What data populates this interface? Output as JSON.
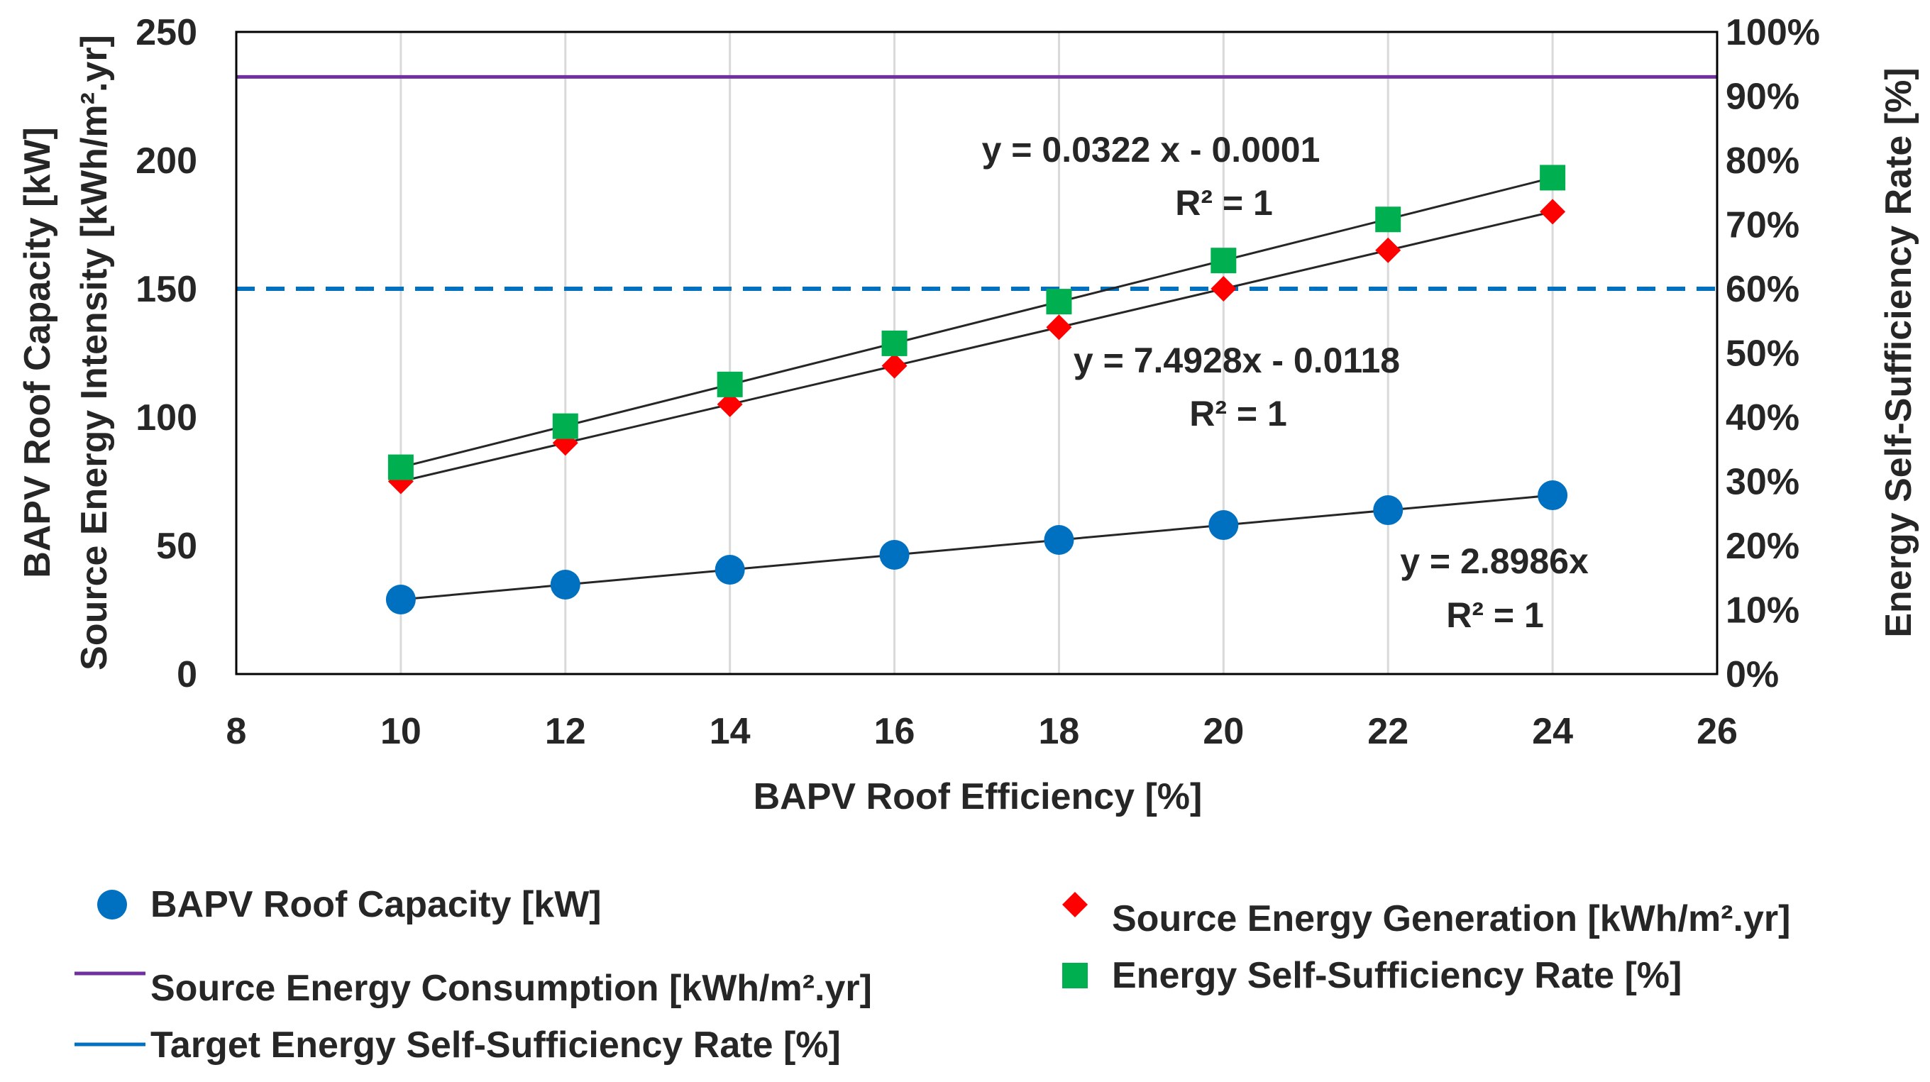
{
  "chart_data": {
    "type": "scatter",
    "xlabel": "BAPV Roof Efficiency [%]",
    "ylabel_left_line1": "BAPV Roof Capacity [kW]",
    "ylabel_left_line2": "Source Energy Intensity [kWh/m².yr]",
    "ylabel_right": "Energy Self-Sufficiency Rate [%]",
    "xlim": [
      8,
      26
    ],
    "xticks": [
      "8",
      "10",
      "12",
      "14",
      "16",
      "18",
      "20",
      "22",
      "24",
      "26"
    ],
    "ylim_left": [
      0,
      250
    ],
    "yticks_left": [
      "0",
      "50",
      "100",
      "150",
      "200",
      "250"
    ],
    "ylim_right": [
      0,
      100
    ],
    "yticks_right": [
      "0%",
      "10%",
      "20%",
      "30%",
      "40%",
      "50%",
      "60%",
      "70%",
      "80%",
      "90%",
      "100%"
    ],
    "x": [
      10,
      12,
      14,
      16,
      18,
      20,
      22,
      24
    ],
    "series": [
      {
        "name": "BAPV Roof Capacity [kW]",
        "axis": "left",
        "marker": "circle",
        "color": "#0070C0",
        "values": [
          29,
          34.8,
          40.6,
          46.4,
          52.2,
          58,
          63.8,
          69.6
        ]
      },
      {
        "name": "Source Energy Generation [kWh/m².yr]",
        "axis": "left",
        "marker": "diamond",
        "color": "#FF0000",
        "values": [
          75,
          90,
          105,
          120,
          135,
          150,
          165,
          180
        ]
      },
      {
        "name": "Energy Self-Sufficiency Rate [%]",
        "axis": "right",
        "marker": "square",
        "color": "#00B050",
        "values": [
          32.2,
          38.6,
          45.1,
          51.5,
          58,
          64.4,
          70.8,
          77.3
        ]
      }
    ],
    "reference_lines": [
      {
        "name": "Source Energy Consumption [kWh/m².yr]",
        "axis": "left",
        "value": 232.5,
        "color": "#7030A0",
        "style": "solid"
      },
      {
        "name": "Target Energy Self-Sufficiency Rate [%]",
        "axis": "right",
        "value": 60,
        "color": "#0070C0",
        "style": "dashed"
      }
    ],
    "trendlines": [
      {
        "series": "Energy Self-Sufficiency Rate [%]",
        "equation": "y = 0.0322 x - 0.0001",
        "r2": "R² = 1"
      },
      {
        "series": "Source Energy Generation [kWh/m².yr]",
        "equation": "y = 7.4928x - 0.0118",
        "r2": "R² = 1"
      },
      {
        "series": "BAPV Roof Capacity [kW]",
        "equation": "y = 2.8986x",
        "r2": "R² = 1"
      }
    ],
    "legend": {
      "placement": "bottom",
      "items": [
        {
          "label": "BAPV Roof Capacity [kW]",
          "symbol": "circle",
          "color": "#0070C0"
        },
        {
          "label": "Source Energy Consumption [kWh/m².yr]",
          "symbol": "line",
          "color": "#7030A0"
        },
        {
          "label": "Target Energy Self-Sufficiency Rate [%]",
          "symbol": "line",
          "color": "#0070C0"
        },
        {
          "label": "Source Energy Generation [kWh/m².yr]",
          "symbol": "diamond",
          "color": "#FF0000"
        },
        {
          "label": "Energy Self-Sufficiency Rate [%]",
          "symbol": "square",
          "color": "#00B050"
        }
      ]
    }
  }
}
